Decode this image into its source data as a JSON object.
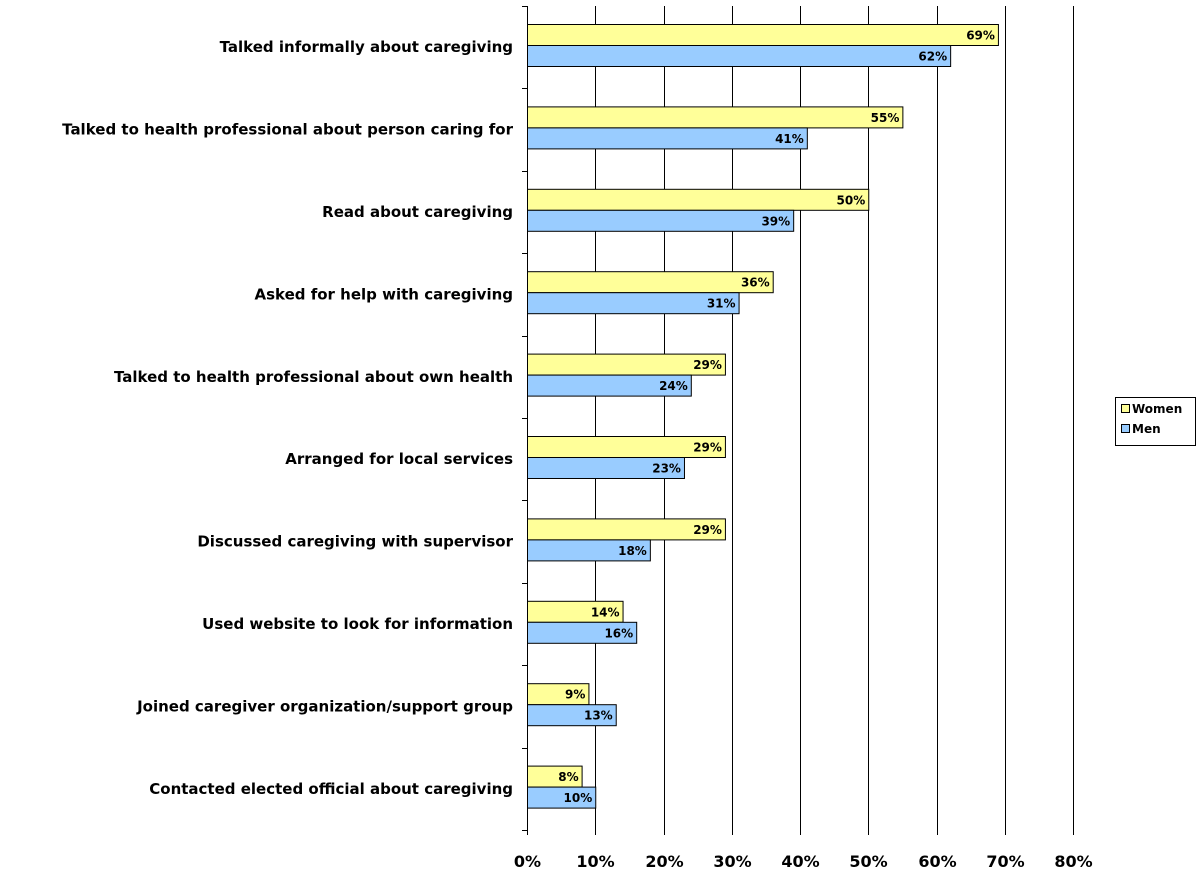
{
  "chart_data": {
    "type": "bar",
    "orientation": "horizontal",
    "categories": [
      "Talked informally about caregiving",
      "Talked to health professional about person caring for",
      "Read about caregiving",
      "Asked for help with caregiving",
      "Talked to health professional about own health",
      "Arranged for local services",
      "Discussed caregiving with supervisor",
      "Used website to look for information",
      "Joined caregiver organization/support group",
      "Contacted elected official about caregiving"
    ],
    "series": [
      {
        "name": "Women",
        "color": "#ffff99",
        "values": [
          69,
          55,
          50,
          36,
          29,
          29,
          29,
          14,
          9,
          8
        ],
        "labels": [
          "69%",
          "55%",
          "50%",
          "36%",
          "29%",
          "29%",
          "29%",
          "14%",
          "9%",
          "8%"
        ]
      },
      {
        "name": "Men",
        "color": "#99ccff",
        "values": [
          62,
          41,
          39,
          31,
          24,
          23,
          18,
          16,
          13,
          10
        ],
        "labels": [
          "62%",
          "41%",
          "39%",
          "31%",
          "24%",
          "23%",
          "18%",
          "16%",
          "13%",
          "10%"
        ]
      }
    ],
    "xlim": [
      0,
      80
    ],
    "xticks": [
      0,
      10,
      20,
      30,
      40,
      50,
      60,
      70,
      80
    ],
    "xtick_labels": [
      "0%",
      "10%",
      "20%",
      "30%",
      "40%",
      "50%",
      "60%",
      "70%",
      "80%"
    ],
    "grid": true,
    "legend": "right"
  }
}
